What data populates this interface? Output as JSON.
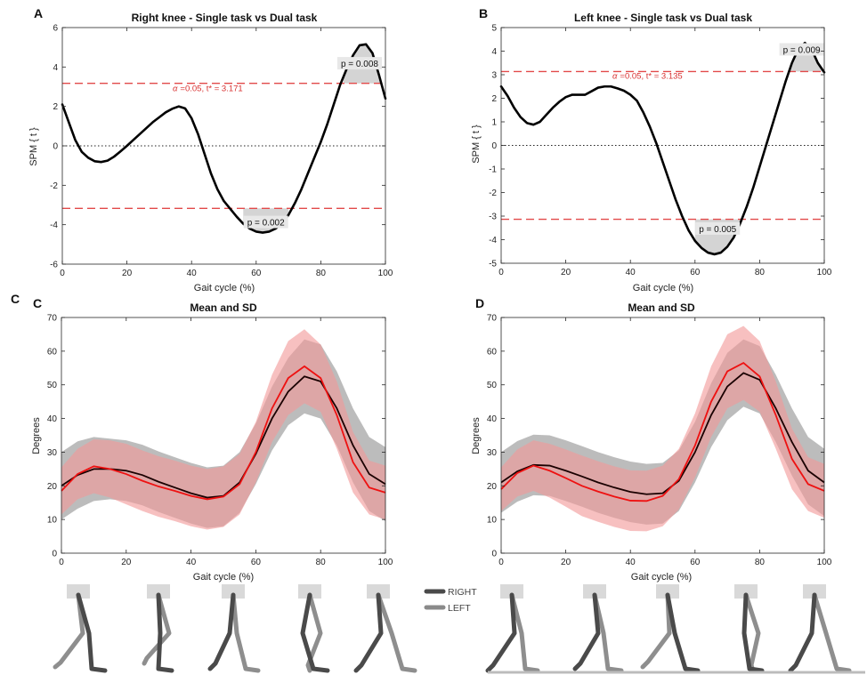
{
  "colors": {
    "threshold": "#e24a4a",
    "spm_line": "#000000",
    "right_band": "#b8b8b8",
    "left_band": "#f29a9a",
    "right_mean": "#1a0000",
    "left_mean": "#ee1111"
  },
  "legend": {
    "right": "RIGHT",
    "left": "LEFT"
  },
  "chart_data": [
    {
      "id": "A",
      "type": "line",
      "letter": "A",
      "title": "Right knee - Single task vs Dual task",
      "xlabel": "Gait cycle (%)",
      "ylabel": "SPM { t }",
      "xlim": [
        0,
        100
      ],
      "ylim": [
        -6,
        6
      ],
      "xticks": [
        0,
        20,
        40,
        60,
        80,
        100
      ],
      "yticks": [
        -6,
        -4,
        -2,
        0,
        2,
        4,
        6
      ],
      "threshold": 3.171,
      "threshold_label": {
        "alpha": "α",
        "rest": "=0.05,     t* = 3.171"
      },
      "x": [
        0,
        2,
        4,
        6,
        8,
        10,
        12,
        14,
        16,
        18,
        20,
        22,
        24,
        26,
        28,
        30,
        32,
        34,
        36,
        38,
        40,
        42,
        44,
        46,
        48,
        50,
        52,
        54,
        56,
        58,
        60,
        62,
        64,
        66,
        68,
        70,
        72,
        74,
        76,
        78,
        80,
        82,
        84,
        86,
        88,
        90,
        92,
        94,
        96,
        98,
        100
      ],
      "y": [
        2.1,
        1.2,
        0.3,
        -0.3,
        -0.6,
        -0.78,
        -0.82,
        -0.75,
        -0.55,
        -0.28,
        0,
        0.3,
        0.6,
        0.9,
        1.2,
        1.45,
        1.7,
        1.88,
        2,
        1.9,
        1.4,
        0.6,
        -0.4,
        -1.4,
        -2.2,
        -2.8,
        -3.2,
        -3.6,
        -3.95,
        -4.2,
        -4.35,
        -4.4,
        -4.35,
        -4.2,
        -3.95,
        -3.5,
        -2.9,
        -2.2,
        -1.4,
        -0.6,
        0.2,
        1.1,
        2.1,
        3.1,
        3.9,
        4.6,
        5.1,
        5.15,
        4.7,
        3.6,
        2.4
      ],
      "clusters": [
        {
          "x1": 56,
          "x2": 70,
          "side": "neg",
          "label": "p = 0.002",
          "label_x": 63,
          "label_y": -3.95
        },
        {
          "x1": 87,
          "x2": 100,
          "side": "pos",
          "label": "p = 0.008",
          "label_x": 92,
          "label_y": 4.1
        }
      ]
    },
    {
      "id": "B",
      "type": "line",
      "letter": "B",
      "title": "Left knee - Single task vs Dual task",
      "xlabel": "Gait cycle (%)",
      "ylabel": "SPM { t }",
      "xlim": [
        0,
        100
      ],
      "ylim": [
        -5,
        5
      ],
      "xticks": [
        0,
        20,
        40,
        60,
        80,
        100
      ],
      "yticks": [
        -5,
        -4,
        -3,
        -2,
        -1,
        0,
        1,
        2,
        3,
        4,
        5
      ],
      "threshold": 3.135,
      "threshold_label": {
        "alpha": "α",
        "rest": "=0.05,     t* = 3.135"
      },
      "x": [
        0,
        2,
        4,
        6,
        8,
        10,
        12,
        14,
        16,
        18,
        20,
        22,
        24,
        26,
        28,
        30,
        32,
        34,
        36,
        38,
        40,
        42,
        44,
        46,
        48,
        50,
        52,
        54,
        56,
        58,
        60,
        62,
        64,
        66,
        68,
        70,
        72,
        74,
        76,
        78,
        80,
        82,
        84,
        86,
        88,
        90,
        92,
        94,
        96,
        98,
        100
      ],
      "y": [
        2.5,
        2.1,
        1.6,
        1.2,
        0.95,
        0.88,
        1,
        1.3,
        1.6,
        1.85,
        2.05,
        2.15,
        2.15,
        2.15,
        2.3,
        2.45,
        2.5,
        2.5,
        2.42,
        2.32,
        2.15,
        1.9,
        1.4,
        0.8,
        0.1,
        -0.7,
        -1.5,
        -2.3,
        -3,
        -3.6,
        -4.05,
        -4.35,
        -4.55,
        -4.62,
        -4.55,
        -4.3,
        -3.9,
        -3.3,
        -2.6,
        -1.8,
        -0.9,
        0,
        0.9,
        1.8,
        2.7,
        3.5,
        4.1,
        4.35,
        4.1,
        3.5,
        3.1
      ],
      "clusters": [
        {
          "x1": 60,
          "x2": 74,
          "side": "neg",
          "label": "p = 0.005",
          "label_x": 67,
          "label_y": -3.6
        },
        {
          "x1": 87,
          "x2": 100,
          "side": "pos",
          "label": "p = 0.009",
          "label_x": 93,
          "label_y": 4.0
        }
      ]
    },
    {
      "id": "C",
      "type": "area",
      "letter": "C",
      "title": "Mean and SD",
      "xlabel": "Gait cycle (%)",
      "ylabel": "Degrees",
      "xlim": [
        0,
        100
      ],
      "ylim": [
        0,
        70
      ],
      "xticks": [
        0,
        20,
        40,
        60,
        80,
        100
      ],
      "yticks": [
        0,
        10,
        20,
        30,
        40,
        50,
        60,
        70
      ],
      "x": [
        0,
        5,
        10,
        15,
        20,
        25,
        30,
        35,
        40,
        45,
        50,
        55,
        60,
        65,
        70,
        75,
        80,
        85,
        90,
        95,
        100
      ],
      "series": [
        {
          "name": "RIGHT",
          "mean": [
            20,
            23.2,
            25,
            25,
            24.5,
            23.2,
            21.2,
            19.5,
            17.8,
            16.5,
            17,
            21,
            29.5,
            40,
            48,
            52.5,
            51,
            43,
            32,
            23.5,
            20.5
          ],
          "sd": [
            10,
            10,
            9.5,
            9,
            9,
            9,
            9,
            9,
            9,
            9,
            9,
            9,
            9,
            9.5,
            10,
            11,
            11,
            11,
            11,
            11,
            11
          ]
        },
        {
          "name": "LEFT",
          "mean": [
            18.5,
            23.5,
            25.8,
            25,
            23.5,
            21.5,
            19.8,
            18.5,
            17,
            16,
            16.8,
            20.5,
            30,
            43,
            52,
            55.5,
            52,
            41,
            27,
            19.5,
            18
          ],
          "sd": [
            7,
            7.5,
            8,
            8.5,
            9,
            9,
            9,
            9,
            9,
            9,
            9,
            9,
            9,
            10,
            11,
            11,
            10,
            10,
            9,
            8,
            8
          ]
        }
      ]
    },
    {
      "id": "D",
      "type": "area",
      "letter": "D",
      "title": "Mean and SD",
      "xlabel": "Gait cycle (%)",
      "ylabel": "Degrees",
      "xlim": [
        0,
        100
      ],
      "ylim": [
        0,
        70
      ],
      "xticks": [
        0,
        20,
        40,
        60,
        80,
        100
      ],
      "yticks": [
        0,
        10,
        20,
        30,
        40,
        50,
        60,
        70
      ],
      "x": [
        0,
        5,
        10,
        15,
        20,
        25,
        30,
        35,
        40,
        45,
        50,
        55,
        60,
        65,
        70,
        75,
        80,
        85,
        90,
        95,
        100
      ],
      "series": [
        {
          "name": "RIGHT",
          "mean": [
            21,
            24.3,
            26.2,
            26,
            24.5,
            22.8,
            21,
            19.5,
            18.2,
            17.5,
            17.8,
            21.5,
            30,
            41,
            49.5,
            53.5,
            51.5,
            43,
            33,
            24.5,
            21
          ],
          "sd": [
            9,
            9,
            9,
            9,
            9,
            9,
            9,
            9,
            9,
            9,
            9,
            9,
            9,
            9.5,
            10,
            10,
            10,
            10,
            10,
            10,
            10
          ]
        },
        {
          "name": "LEFT",
          "mean": [
            19,
            23.8,
            26,
            24.5,
            22.3,
            20,
            18.3,
            16.8,
            15.6,
            15.5,
            17,
            22,
            32,
            45,
            54,
            56.5,
            52.5,
            41,
            28,
            20.5,
            18.5
          ],
          "sd": [
            6.5,
            7,
            7.5,
            8,
            8.5,
            9,
            9,
            9,
            9,
            9,
            9,
            9,
            9.5,
            10.5,
            11,
            11,
            10.5,
            10,
            9,
            8,
            8
          ]
        }
      ]
    }
  ]
}
